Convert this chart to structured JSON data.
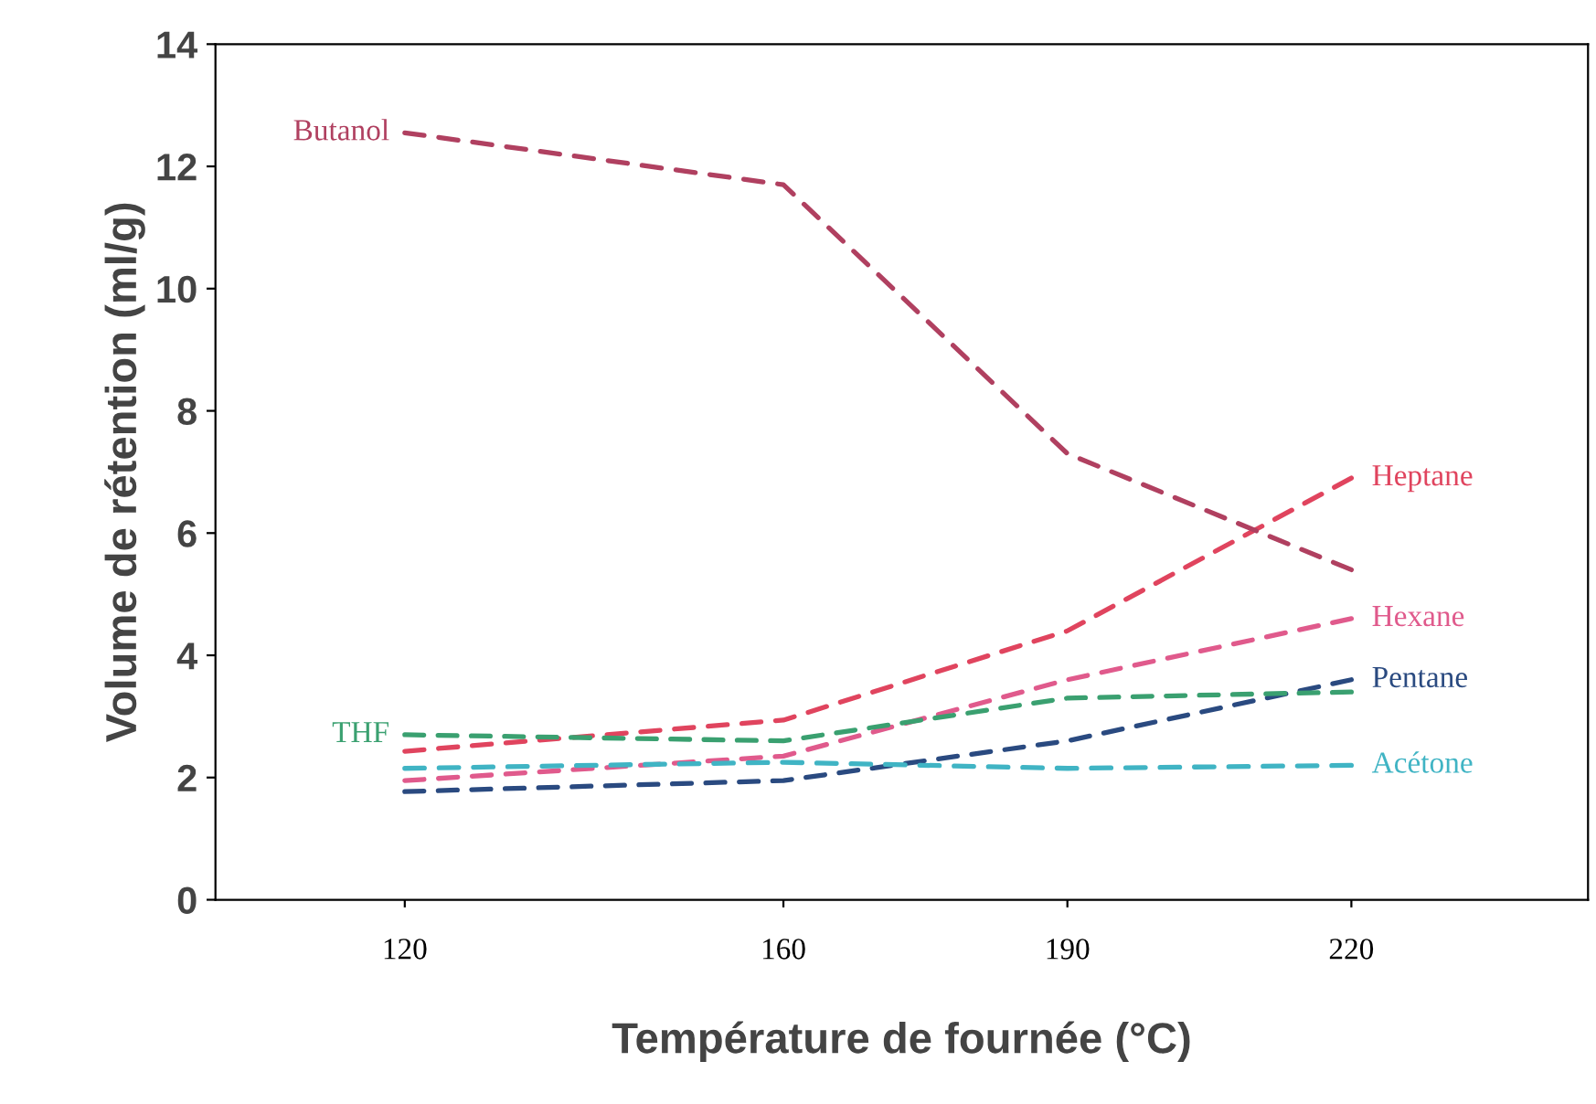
{
  "chart_data": {
    "type": "line",
    "xlabel": "Température de fournée (°C)",
    "ylabel": "Volume de rétention (ml/g)",
    "x": [
      120,
      160,
      190,
      220
    ],
    "series": [
      {
        "name": "Heptane",
        "color": "#e0445e",
        "values": [
          2.43,
          2.94,
          4.4,
          6.9
        ]
      },
      {
        "name": "Hexane",
        "color": "#e05a8c",
        "values": [
          1.95,
          2.35,
          3.6,
          4.6
        ]
      },
      {
        "name": "Pentane",
        "color": "#2a4a80",
        "values": [
          1.77,
          1.95,
          2.6,
          3.6
        ]
      },
      {
        "name": "Acétone",
        "color": "#40b4c4",
        "values": [
          2.15,
          2.25,
          2.15,
          2.2
        ]
      },
      {
        "name": "Butanol",
        "color": "#b04060",
        "values": [
          12.55,
          11.7,
          7.3,
          5.4
        ]
      },
      {
        "name": "THF",
        "color": "#3aa070",
        "values": [
          2.7,
          2.6,
          3.3,
          3.4
        ]
      }
    ],
    "xlim": [
      100,
      245
    ],
    "xticks": [
      120,
      160,
      190,
      220
    ],
    "ylim": [
      0,
      14
    ],
    "yticks": [
      0,
      2,
      4,
      6,
      8,
      10,
      12,
      14
    ],
    "line_style": "dashed",
    "grid": false,
    "legend": false
  }
}
